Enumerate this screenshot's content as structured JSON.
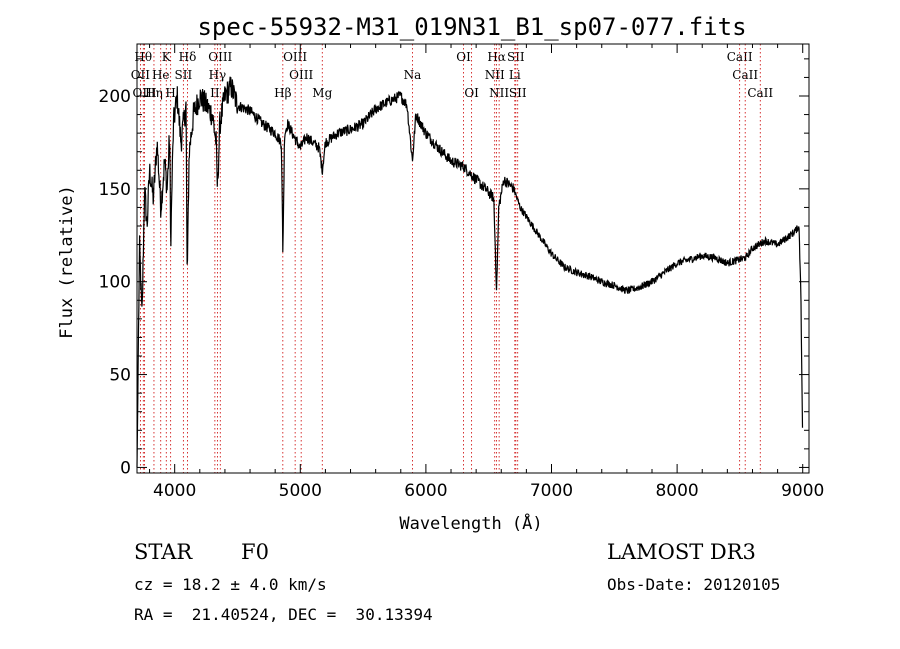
{
  "chart_data": {
    "type": "line",
    "title": "spec-55932-M31_019N31_B1_sp07-077.fits",
    "xlabel": "Wavelength (Å)",
    "ylabel": "Flux (relative)",
    "xlim": [
      3700,
      9050
    ],
    "ylim": [
      -3,
      228
    ],
    "x_ticks": [
      4000,
      5000,
      6000,
      7000,
      8000,
      9000
    ],
    "y_ticks": [
      0,
      50,
      100,
      150,
      200
    ],
    "grid": false,
    "spectrum_anchors": {
      "x": [
        3700,
        3720,
        3740,
        3760,
        3780,
        3800,
        3830,
        3860,
        3890,
        3920,
        3940,
        3960,
        3968,
        3990,
        4020,
        4050,
        4090,
        4100,
        4115,
        4150,
        4200,
        4250,
        4300,
        4330,
        4340,
        4360,
        4400,
        4450,
        4500,
        4600,
        4700,
        4800,
        4850,
        4861,
        4875,
        4900,
        4950,
        5000,
        5050,
        5100,
        5150,
        5175,
        5200,
        5300,
        5400,
        5500,
        5600,
        5700,
        5800,
        5850,
        5893,
        5920,
        6000,
        6100,
        6200,
        6300,
        6400,
        6500,
        6540,
        6563,
        6580,
        6620,
        6700,
        6750,
        6800,
        6900,
        7000,
        7100,
        7200,
        7300,
        7400,
        7500,
        7600,
        7650,
        7700,
        7800,
        7900,
        8000,
        8100,
        8200,
        8300,
        8400,
        8500,
        8550,
        8600,
        8700,
        8800,
        8900,
        8950,
        8970,
        8985,
        9000
      ],
      "y": [
        0,
        120,
        80,
        150,
        130,
        160,
        145,
        175,
        140,
        165,
        150,
        180,
        120,
        185,
        200,
        175,
        195,
        100,
        170,
        190,
        200,
        195,
        190,
        175,
        150,
        185,
        200,
        205,
        195,
        192,
        185,
        180,
        175,
        115,
        180,
        185,
        178,
        172,
        178,
        175,
        172,
        160,
        175,
        180,
        182,
        185,
        193,
        197,
        200,
        195,
        165,
        190,
        180,
        172,
        165,
        162,
        155,
        148,
        145,
        95,
        140,
        155,
        150,
        140,
        135,
        125,
        115,
        108,
        105,
        103,
        100,
        98,
        95,
        96,
        97,
        100,
        105,
        110,
        112,
        114,
        113,
        110,
        112,
        113,
        118,
        122,
        120,
        125,
        128,
        130,
        95,
        10
      ]
    },
    "lines": [
      {
        "label": "Hθ",
        "x": 3750,
        "row": 1
      },
      {
        "label": "OII",
        "x": 3727,
        "row": 2
      },
      {
        "label": "OIII",
        "x": 3760,
        "row": 3
      },
      {
        "label": "Hη",
        "x": 3835,
        "row": 3
      },
      {
        "label": "He",
        "x": 3889,
        "row": 2
      },
      {
        "label": "K",
        "x": 3933,
        "row": 1
      },
      {
        "label": "SII",
        "x": 4069,
        "row": 2
      },
      {
        "label": "H",
        "x": 3968,
        "row": 3
      },
      {
        "label": "Hδ",
        "x": 4102,
        "row": 1
      },
      {
        "label": "OIII",
        "x": 4363,
        "row": 1
      },
      {
        "label": "Hγ",
        "x": 4340,
        "row": 2
      },
      {
        "label": "II",
        "x": 4320,
        "row": 3
      },
      {
        "label": "Hβ",
        "x": 4861,
        "row": 3
      },
      {
        "label": "OIII",
        "x": 4959,
        "row": 1
      },
      {
        "label": "OIII",
        "x": 5007,
        "row": 2
      },
      {
        "label": "Mg",
        "x": 5175,
        "row": 3
      },
      {
        "label": "Na",
        "x": 5893,
        "row": 2
      },
      {
        "label": "OI",
        "x": 6300,
        "row": 1
      },
      {
        "label": "OI",
        "x": 6364,
        "row": 3
      },
      {
        "label": "Hα",
        "x": 6563,
        "row": 1
      },
      {
        "label": "NII",
        "x": 6548,
        "row": 2
      },
      {
        "label": "NII",
        "x": 6583,
        "row": 3
      },
      {
        "label": "SII",
        "x": 6716,
        "row": 1
      },
      {
        "label": "Li",
        "x": 6708,
        "row": 2
      },
      {
        "label": "SII",
        "x": 6731,
        "row": 3
      },
      {
        "label": "CaII",
        "x": 8498,
        "row": 1
      },
      {
        "label": "CaII",
        "x": 8542,
        "row": 2
      },
      {
        "label": "CaII",
        "x": 8662,
        "row": 3
      }
    ]
  },
  "info": {
    "class": "STAR",
    "subclass": "F0",
    "survey": "LAMOST DR3",
    "cz": "cz = 18.2 ± 4.0 km/s",
    "obs_date": "Obs-Date: 20120105",
    "radec": "RA =  21.40524, DEC =  30.13394"
  }
}
